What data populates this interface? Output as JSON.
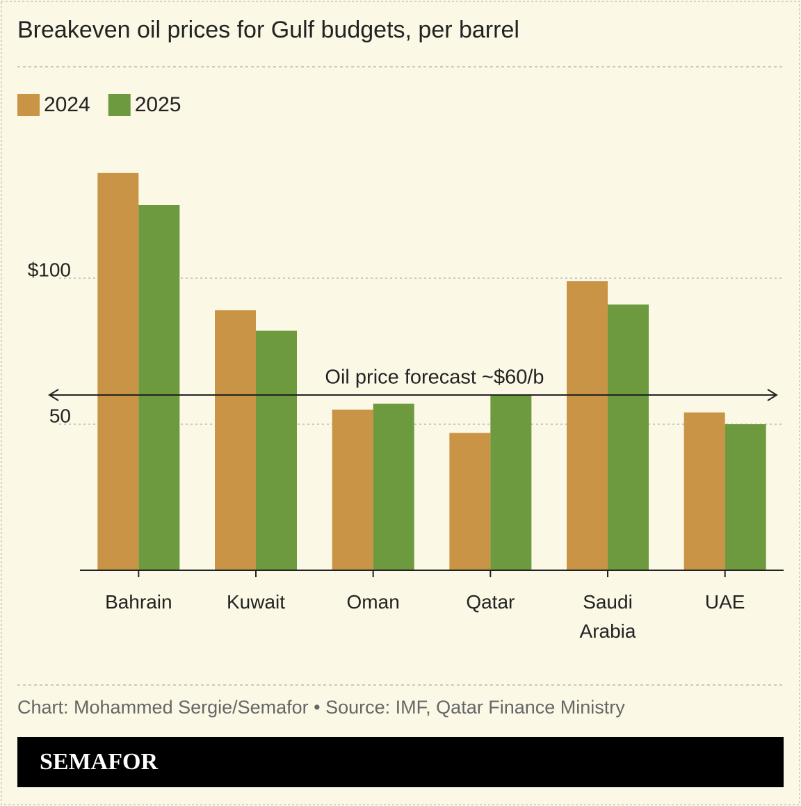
{
  "chart_data": {
    "type": "bar",
    "title": "Breakeven oil prices for Gulf budgets, per barrel",
    "categories": [
      "Bahrain",
      "Kuwait",
      "Oman",
      "Qatar",
      "Saudi Arabia",
      "UAE"
    ],
    "series": [
      {
        "name": "2024",
        "color": "#c99445",
        "values": [
          136,
          89,
          55,
          47,
          99,
          54
        ]
      },
      {
        "name": "2025",
        "color": "#6e9a3f",
        "values": [
          125,
          82,
          57,
          60,
          91,
          50
        ]
      }
    ],
    "ylim": [
      0,
      140
    ],
    "yticks": [
      50,
      {
        "value": 100,
        "label": "$100"
      }
    ],
    "grid": true,
    "reference_line": {
      "value": 60,
      "label": "Oil price forecast ~$60/b"
    },
    "source": "Chart: Mohammed Sergie/Semafor • Source: IMF, Qatar Finance Ministry",
    "brand": "SEMAFOR"
  }
}
